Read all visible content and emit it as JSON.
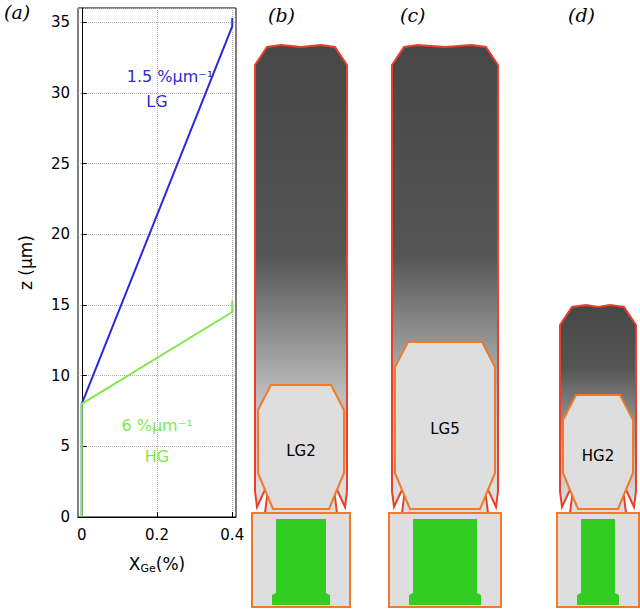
{
  "chart_data": {
    "type": "line",
    "panel_label": "(a)",
    "x_label": {
      "base": "X",
      "sub": "Ge",
      "rest": "(%)"
    },
    "y_label": "z (μm)",
    "xlim": [
      -0.01,
      0.41
    ],
    "xticks": [
      0,
      0.2,
      0.4
    ],
    "ylim": [
      0,
      36
    ],
    "yticks": [
      0,
      5,
      10,
      15,
      20,
      25,
      30,
      35
    ],
    "grid": true,
    "series": [
      {
        "name": "LG",
        "color": "#2a2ad6",
        "rate_label": "1.5 %μm⁻¹",
        "x": [
          0,
          0,
          0.4,
          0.4
        ],
        "values": [
          0,
          8,
          34.7,
          35.3
        ]
      },
      {
        "name": "HG",
        "color": "#7fe84a",
        "rate_label": "6 %μm⁻¹",
        "x": [
          0,
          0,
          0.4,
          0.4
        ],
        "values": [
          0,
          8,
          14.5,
          15.3
        ]
      }
    ]
  },
  "diagram": {
    "panels": [
      {
        "panel_label": "(b)",
        "label": "LG2"
      },
      {
        "panel_label": "(c)",
        "label": "LG5"
      },
      {
        "panel_label": "(d)",
        "label": "HG2"
      }
    ]
  }
}
